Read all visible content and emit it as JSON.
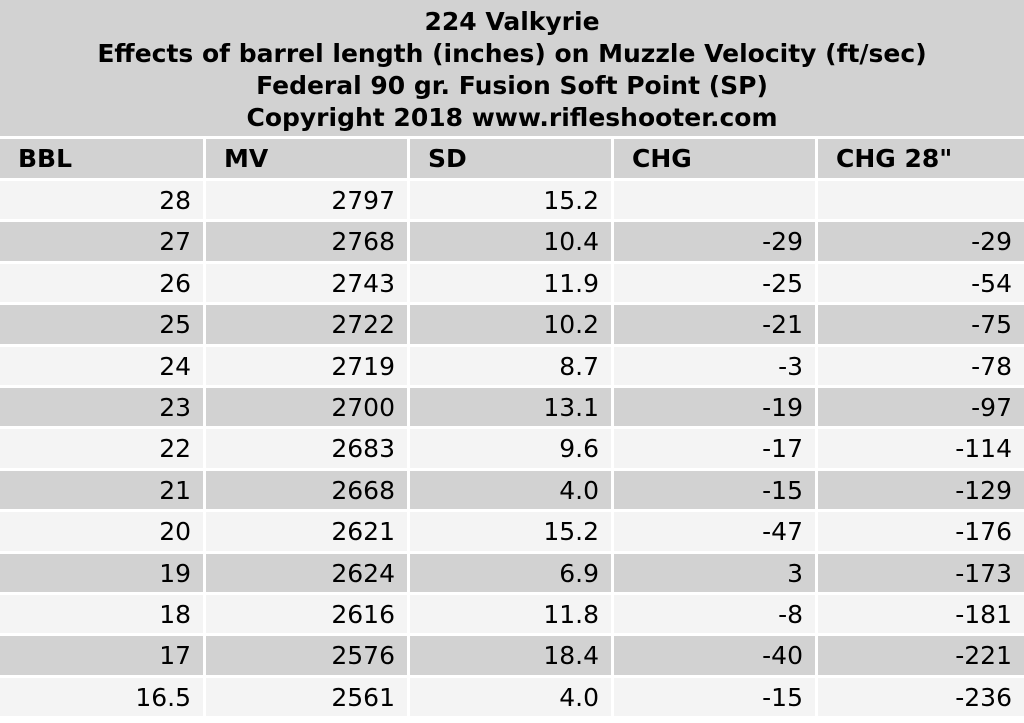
{
  "header": {
    "title": [
      "224 Valkyrie",
      "Effects of barrel length (inches) on Muzzle Velocity (ft/sec)",
      "Federal 90 gr. Fusion Soft Point (SP)",
      "Copyright 2018 www.rifleshooter.com"
    ]
  },
  "table": {
    "columns": [
      "BBL",
      "MV",
      "SD",
      "CHG",
      "CHG 28\""
    ],
    "rows": [
      [
        "28",
        "2797",
        "15.2",
        null,
        null
      ],
      [
        "27",
        "2768",
        "10.4",
        "-29",
        "-29"
      ],
      [
        "26",
        "2743",
        "11.9",
        "-25",
        "-54"
      ],
      [
        "25",
        "2722",
        "10.2",
        "-21",
        "-75"
      ],
      [
        "24",
        "2719",
        "8.7",
        "-3",
        "-78"
      ],
      [
        "23",
        "2700",
        "13.1",
        "-19",
        "-97"
      ],
      [
        "22",
        "2683",
        "9.6",
        "-17",
        "-114"
      ],
      [
        "21",
        "2668",
        "4.0",
        "-15",
        "-129"
      ],
      [
        "20",
        "2621",
        "15.2",
        "-47",
        "-176"
      ],
      [
        "19",
        "2624",
        "6.9",
        "3",
        "-173"
      ],
      [
        "18",
        "2616",
        "11.8",
        "-8",
        "-181"
      ],
      [
        "17",
        "2576",
        "18.4",
        "-40",
        "-221"
      ],
      [
        "16.5",
        "2561",
        "4.0",
        "-15",
        "-236"
      ]
    ]
  }
}
